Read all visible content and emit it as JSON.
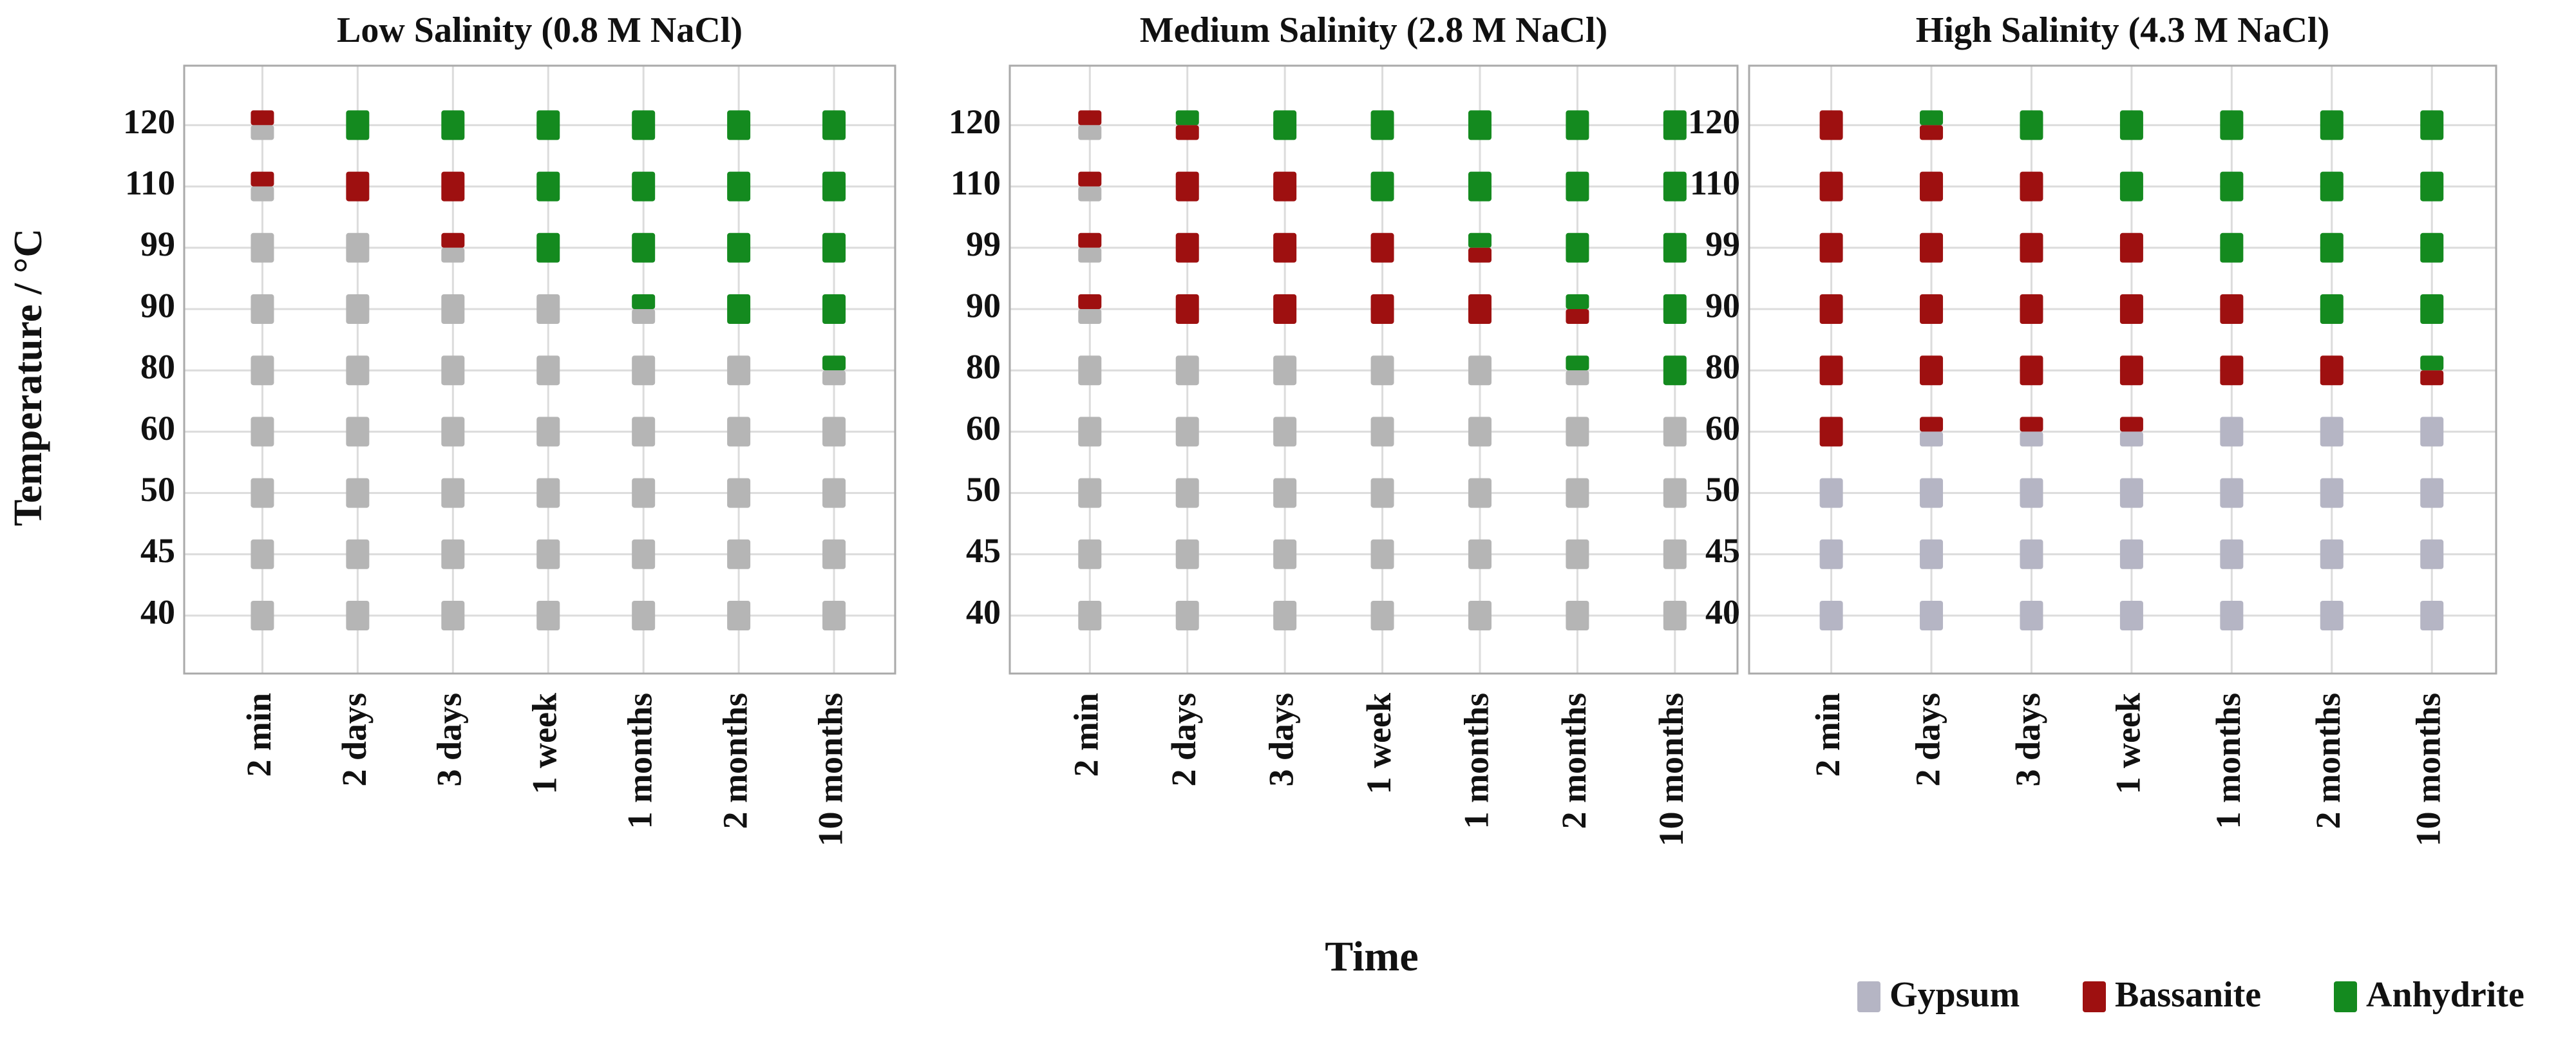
{
  "chart_data": [
    {
      "type": "scatter",
      "title": "Low Salinity (0.8 M NaCl)",
      "ylabel": "Temperature / °C",
      "categories": [
        "2 min",
        "2 days",
        "3 days",
        "1 week",
        "1 months",
        "2 months",
        "10 months"
      ],
      "yticks": [
        40,
        45,
        50,
        60,
        80,
        90,
        99,
        110,
        120
      ],
      "grid": true,
      "series": [
        {
          "name": "Gypsum",
          "color": "#b5b5b5",
          "points": [
            [
              "2 min",
              120
            ],
            [
              "2 min",
              110
            ],
            [
              "2 min",
              99
            ],
            [
              "2 min",
              90
            ],
            [
              "2 min",
              80
            ],
            [
              "2 min",
              60
            ],
            [
              "2 min",
              50
            ],
            [
              "2 min",
              45
            ],
            [
              "2 min",
              40
            ],
            [
              "2 days",
              99
            ],
            [
              "2 days",
              90
            ],
            [
              "2 days",
              80
            ],
            [
              "2 days",
              60
            ],
            [
              "2 days",
              50
            ],
            [
              "2 days",
              45
            ],
            [
              "2 days",
              40
            ],
            [
              "3 days",
              99
            ],
            [
              "3 days",
              90
            ],
            [
              "3 days",
              80
            ],
            [
              "3 days",
              60
            ],
            [
              "3 days",
              50
            ],
            [
              "3 days",
              45
            ],
            [
              "3 days",
              40
            ],
            [
              "1 week",
              90
            ],
            [
              "1 week",
              80
            ],
            [
              "1 week",
              60
            ],
            [
              "1 week",
              50
            ],
            [
              "1 week",
              45
            ],
            [
              "1 week",
              40
            ],
            [
              "1 months",
              90
            ],
            [
              "1 months",
              80
            ],
            [
              "1 months",
              60
            ],
            [
              "1 months",
              50
            ],
            [
              "1 months",
              45
            ],
            [
              "1 months",
              40
            ],
            [
              "2 months",
              80
            ],
            [
              "2 months",
              60
            ],
            [
              "2 months",
              50
            ],
            [
              "2 months",
              45
            ],
            [
              "2 months",
              40
            ],
            [
              "10 months",
              80
            ],
            [
              "10 months",
              60
            ],
            [
              "10 months",
              50
            ],
            [
              "10 months",
              45
            ],
            [
              "10 months",
              40
            ]
          ]
        },
        {
          "name": "Bassanite",
          "color": "#9e1010",
          "points": [
            [
              "2 min",
              120
            ],
            [
              "2 min",
              110
            ],
            [
              "2 days",
              110
            ],
            [
              "3 days",
              110
            ],
            [
              "3 days",
              99
            ]
          ]
        },
        {
          "name": "Anhydrite",
          "color": "#148a1f",
          "points": [
            [
              "2 days",
              120
            ],
            [
              "3 days",
              120
            ],
            [
              "1 week",
              120
            ],
            [
              "1 week",
              110
            ],
            [
              "1 week",
              99
            ],
            [
              "1 months",
              120
            ],
            [
              "1 months",
              110
            ],
            [
              "1 months",
              99
            ],
            [
              "1 months",
              90
            ],
            [
              "2 months",
              120
            ],
            [
              "2 months",
              110
            ],
            [
              "2 months",
              99
            ],
            [
              "2 months",
              90
            ],
            [
              "10 months",
              120
            ],
            [
              "10 months",
              110
            ],
            [
              "10 months",
              99
            ],
            [
              "10 months",
              90
            ],
            [
              "10 months",
              80
            ]
          ]
        }
      ]
    },
    {
      "type": "scatter",
      "title": "Medium Salinity (2.8 M NaCl)",
      "xlabel": "Time",
      "categories": [
        "2 min",
        "2 days",
        "3 days",
        "1 week",
        "1 months",
        "2 months",
        "10 months"
      ],
      "yticks": [
        40,
        45,
        50,
        60,
        80,
        90,
        99,
        110,
        120
      ],
      "grid": true,
      "series": [
        {
          "name": "Gypsum",
          "color": "#b5b5b5",
          "points": [
            [
              "2 min",
              120
            ],
            [
              "2 min",
              110
            ],
            [
              "2 min",
              99
            ],
            [
              "2 min",
              90
            ],
            [
              "2 min",
              80
            ],
            [
              "2 min",
              60
            ],
            [
              "2 min",
              50
            ],
            [
              "2 min",
              45
            ],
            [
              "2 min",
              40
            ],
            [
              "2 days",
              80
            ],
            [
              "2 days",
              60
            ],
            [
              "2 days",
              50
            ],
            [
              "2 days",
              45
            ],
            [
              "2 days",
              40
            ],
            [
              "3 days",
              80
            ],
            [
              "3 days",
              60
            ],
            [
              "3 days",
              50
            ],
            [
              "3 days",
              45
            ],
            [
              "3 days",
              40
            ],
            [
              "1 week",
              80
            ],
            [
              "1 week",
              60
            ],
            [
              "1 week",
              50
            ],
            [
              "1 week",
              45
            ],
            [
              "1 week",
              40
            ],
            [
              "1 months",
              80
            ],
            [
              "1 months",
              60
            ],
            [
              "1 months",
              50
            ],
            [
              "1 months",
              45
            ],
            [
              "1 months",
              40
            ],
            [
              "2 months",
              80
            ],
            [
              "2 months",
              60
            ],
            [
              "2 months",
              50
            ],
            [
              "2 months",
              45
            ],
            [
              "2 months",
              40
            ],
            [
              "10 months",
              60
            ],
            [
              "10 months",
              50
            ],
            [
              "10 months",
              45
            ],
            [
              "10 months",
              40
            ]
          ]
        },
        {
          "name": "Bassanite",
          "color": "#9e1010",
          "points": [
            [
              "2 min",
              120
            ],
            [
              "2 min",
              110
            ],
            [
              "2 min",
              99
            ],
            [
              "2 min",
              90
            ],
            [
              "2 days",
              120
            ],
            [
              "2 days",
              110
            ],
            [
              "2 days",
              99
            ],
            [
              "2 days",
              90
            ],
            [
              "3 days",
              110
            ],
            [
              "3 days",
              99
            ],
            [
              "3 days",
              90
            ],
            [
              "1 week",
              99
            ],
            [
              "1 week",
              90
            ],
            [
              "1 months",
              99
            ],
            [
              "1 months",
              90
            ],
            [
              "2 months",
              90
            ]
          ]
        },
        {
          "name": "Anhydrite",
          "color": "#148a1f",
          "points": [
            [
              "2 days",
              120
            ],
            [
              "3 days",
              120
            ],
            [
              "1 week",
              120
            ],
            [
              "1 week",
              110
            ],
            [
              "1 months",
              120
            ],
            [
              "1 months",
              110
            ],
            [
              "1 months",
              99
            ],
            [
              "2 months",
              120
            ],
            [
              "2 months",
              110
            ],
            [
              "2 months",
              99
            ],
            [
              "2 months",
              90
            ],
            [
              "2 months",
              80
            ],
            [
              "10 months",
              120
            ],
            [
              "10 months",
              110
            ],
            [
              "10 months",
              99
            ],
            [
              "10 months",
              90
            ],
            [
              "10 months",
              80
            ]
          ]
        }
      ]
    },
    {
      "type": "scatter",
      "title": "High Salinity (4.3 M NaCl)",
      "legend": "bottom-right",
      "categories": [
        "2 min",
        "2 days",
        "3 days",
        "1 week",
        "1 months",
        "2 months",
        "10 months"
      ],
      "yticks": [
        40,
        45,
        50,
        60,
        80,
        90,
        99,
        110,
        120
      ],
      "grid": true,
      "series": [
        {
          "name": "Gypsum",
          "color": "#b5b5c4",
          "points": [
            [
              "2 min",
              50
            ],
            [
              "2 min",
              45
            ],
            [
              "2 min",
              40
            ],
            [
              "2 days",
              60
            ],
            [
              "2 days",
              50
            ],
            [
              "2 days",
              45
            ],
            [
              "2 days",
              40
            ],
            [
              "3 days",
              60
            ],
            [
              "3 days",
              50
            ],
            [
              "3 days",
              45
            ],
            [
              "3 days",
              40
            ],
            [
              "1 week",
              60
            ],
            [
              "1 week",
              50
            ],
            [
              "1 week",
              45
            ],
            [
              "1 week",
              40
            ],
            [
              "1 months",
              60
            ],
            [
              "1 months",
              50
            ],
            [
              "1 months",
              45
            ],
            [
              "1 months",
              40
            ],
            [
              "2 months",
              60
            ],
            [
              "2 months",
              50
            ],
            [
              "2 months",
              45
            ],
            [
              "2 months",
              40
            ],
            [
              "10 months",
              60
            ],
            [
              "10 months",
              50
            ],
            [
              "10 months",
              45
            ],
            [
              "10 months",
              40
            ]
          ]
        },
        {
          "name": "Bassanite",
          "color": "#9e1010",
          "points": [
            [
              "2 min",
              120
            ],
            [
              "2 min",
              110
            ],
            [
              "2 min",
              99
            ],
            [
              "2 min",
              90
            ],
            [
              "2 min",
              80
            ],
            [
              "2 min",
              60
            ],
            [
              "2 days",
              120
            ],
            [
              "2 days",
              110
            ],
            [
              "2 days",
              99
            ],
            [
              "2 days",
              90
            ],
            [
              "2 days",
              80
            ],
            [
              "2 days",
              60
            ],
            [
              "3 days",
              110
            ],
            [
              "3 days",
              99
            ],
            [
              "3 days",
              90
            ],
            [
              "3 days",
              80
            ],
            [
              "3 days",
              60
            ],
            [
              "1 week",
              99
            ],
            [
              "1 week",
              90
            ],
            [
              "1 week",
              80
            ],
            [
              "1 week",
              60
            ],
            [
              "1 months",
              90
            ],
            [
              "1 months",
              80
            ],
            [
              "2 months",
              80
            ],
            [
              "10 months",
              80
            ]
          ]
        },
        {
          "name": "Anhydrite",
          "color": "#148a1f",
          "points": [
            [
              "2 days",
              120
            ],
            [
              "3 days",
              120
            ],
            [
              "1 week",
              120
            ],
            [
              "1 week",
              110
            ],
            [
              "1 months",
              120
            ],
            [
              "1 months",
              110
            ],
            [
              "1 months",
              99
            ],
            [
              "2 months",
              120
            ],
            [
              "2 months",
              110
            ],
            [
              "2 months",
              99
            ],
            [
              "2 months",
              90
            ],
            [
              "10 months",
              120
            ],
            [
              "10 months",
              110
            ],
            [
              "10 months",
              99
            ],
            [
              "10 months",
              90
            ],
            [
              "10 months",
              80
            ]
          ]
        }
      ]
    }
  ]
}
